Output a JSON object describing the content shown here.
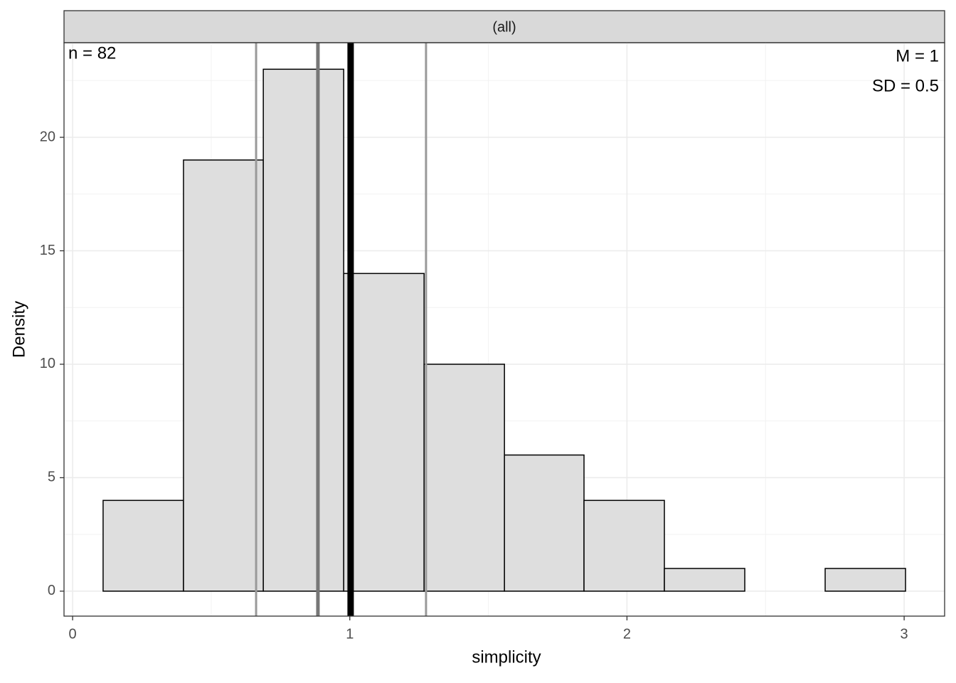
{
  "chart_data": {
    "type": "histogram",
    "strip_label": "(all)",
    "xlabel": "simplicity",
    "ylabel": "Density",
    "bins": [
      0.11,
      0.4,
      0.688,
      0.978,
      1.268,
      1.558,
      1.845,
      2.135,
      2.425,
      2.715,
      3.005
    ],
    "counts": [
      4,
      19,
      23,
      14,
      10,
      6,
      4,
      1,
      0,
      1
    ],
    "color": "#dedede",
    "xlim": [
      -0.031,
      3.146
    ],
    "xticks": [
      0,
      1,
      2,
      3
    ],
    "ylim": [
      -1.1,
      24.17
    ],
    "yticks": [
      0,
      5,
      10,
      15,
      20
    ],
    "grid": true,
    "vlines": [
      0.662,
      0.885,
      1.003,
      1.275
    ],
    "vline_colors": [
      "#999999",
      "#777777",
      "#000000",
      "#999999"
    ],
    "annotations": [
      "n = 82",
      "M = 1",
      "SD = 0.5"
    ]
  }
}
